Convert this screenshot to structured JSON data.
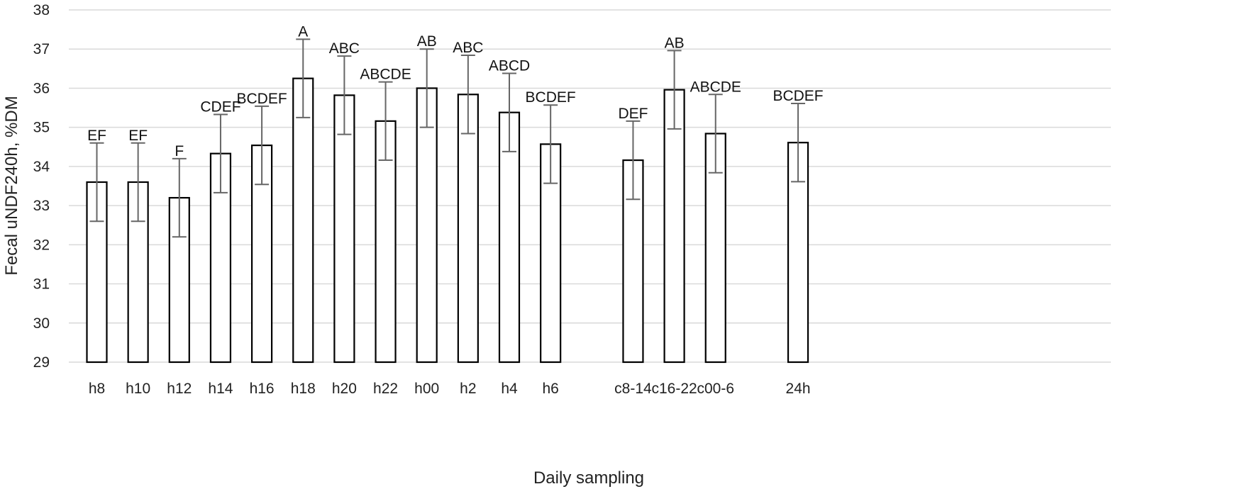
{
  "chart_data": {
    "type": "bar",
    "title": "",
    "xlabel": "Daily sampling",
    "ylabel": "Fecal uNDF240h, %DM",
    "ylim": [
      29,
      38
    ],
    "yticks": [
      "29",
      "30",
      "31",
      "32",
      "33",
      "34",
      "35",
      "36",
      "37",
      "38"
    ],
    "grid": true,
    "legend": "none",
    "error_bars": true,
    "categories": [
      "h8",
      "h10",
      "h12",
      "h14",
      "h16",
      "h18",
      "h20",
      "h22",
      "h00",
      "h2",
      "h4",
      "h6",
      "c8-14",
      "c16-22",
      "c00-6",
      "24h"
    ],
    "values": [
      33.6,
      33.6,
      33.2,
      34.33,
      34.54,
      36.25,
      35.82,
      35.16,
      36.0,
      35.84,
      35.38,
      34.57,
      34.16,
      35.96,
      34.84,
      34.61
    ],
    "errors": [
      1.0,
      1.0,
      1.0,
      1.0,
      1.0,
      1.0,
      1.0,
      1.0,
      1.0,
      1.0,
      1.0,
      1.0,
      1.0,
      1.0,
      1.0,
      1.0
    ],
    "letters": [
      "EF",
      "EF",
      "F",
      "CDEF",
      "BCDEF",
      "A",
      "ABC",
      "ABCDE",
      "AB",
      "ABC",
      "ABCD",
      "BCDEF",
      "DEF",
      "AB",
      "ABCDE",
      "BCDEF"
    ],
    "bar_color": "#ffffff",
    "bar_edge_color": "#000000",
    "error_color": "#666666",
    "grid_color": "#d9d9d9"
  }
}
